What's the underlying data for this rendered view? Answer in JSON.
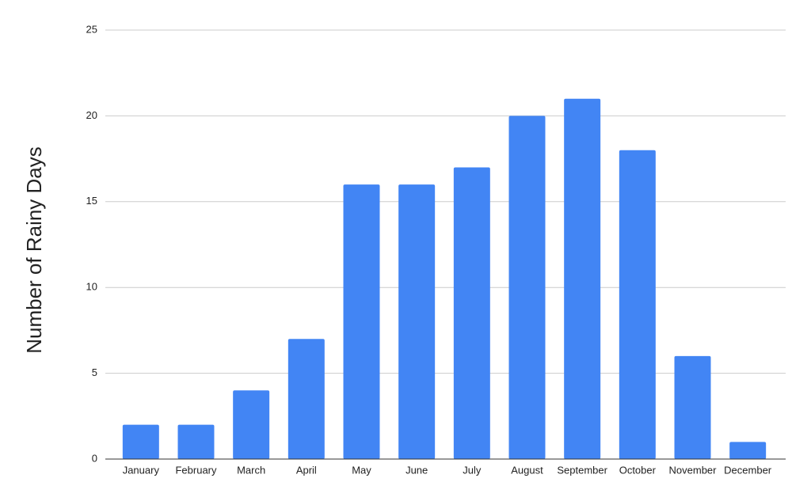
{
  "chart_data": {
    "type": "bar",
    "y_axis_label": "Number of Rainy Days",
    "categories": [
      "January",
      "February",
      "March",
      "April",
      "May",
      "June",
      "July",
      "August",
      "September",
      "October",
      "November",
      "December"
    ],
    "values": [
      2,
      2,
      4,
      7,
      16,
      16,
      17,
      20,
      21,
      18,
      6,
      1
    ],
    "color": "#4285f4",
    "ylim": [
      0,
      25
    ],
    "yticks": [
      0,
      5,
      10,
      15,
      20,
      25
    ],
    "grid": true
  }
}
